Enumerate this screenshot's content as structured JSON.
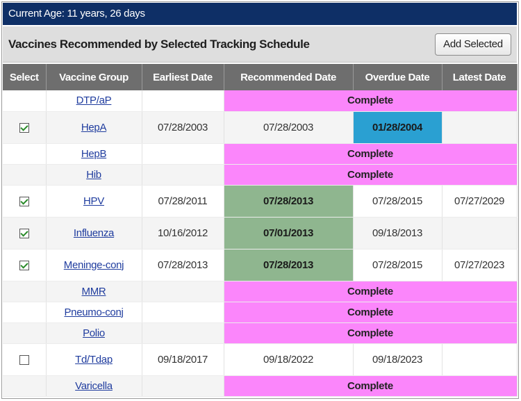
{
  "age_bar": {
    "text": "Current Age: 11 years, 26 days"
  },
  "schedule": {
    "title": "Vaccines Recommended by Selected Tracking Schedule",
    "add_button": "Add Selected"
  },
  "columns": [
    "Select",
    "Vaccine Group",
    "Earliest Date",
    "Recommended Date",
    "Overdue Date",
    "Latest Date"
  ],
  "status_label": "Complete",
  "colors": {
    "header_bar": "#0e2f66",
    "complete": "#fb86fb",
    "recommended_highlight": "#8fb68f",
    "overdue_highlight": "#2aa0d2",
    "column_header": "#6e6e6e"
  },
  "rows": [
    {
      "vaccine": "DTP/aP",
      "complete": true
    },
    {
      "vaccine": "HepA",
      "checkbox": "checked",
      "earliest": "07/28/2003",
      "recommended": "07/28/2003",
      "overdue": "01/28/2004",
      "latest": "",
      "highlight_overdue": true
    },
    {
      "vaccine": "HepB",
      "complete": true
    },
    {
      "vaccine": "Hib",
      "complete": true
    },
    {
      "vaccine": "HPV",
      "checkbox": "checked",
      "earliest": "07/28/2011",
      "recommended": "07/28/2013",
      "overdue": "07/28/2015",
      "latest": "07/27/2029",
      "highlight_recommended": true
    },
    {
      "vaccine": "Influenza",
      "checkbox": "checked",
      "earliest": "10/16/2012",
      "recommended": "07/01/2013",
      "overdue": "09/18/2013",
      "latest": "",
      "highlight_recommended": true
    },
    {
      "vaccine": "Meninge-conj",
      "checkbox": "checked",
      "earliest": "07/28/2013",
      "recommended": "07/28/2013",
      "overdue": "07/28/2015",
      "latest": "07/27/2023",
      "highlight_recommended": true
    },
    {
      "vaccine": "MMR",
      "complete": true
    },
    {
      "vaccine": "Pneumo-conj",
      "complete": true
    },
    {
      "vaccine": "Polio",
      "complete": true
    },
    {
      "vaccine": "Td/Tdap",
      "checkbox": "unchecked",
      "earliest": "09/18/2017",
      "recommended": "09/18/2022",
      "overdue": "09/18/2023",
      "latest": ""
    },
    {
      "vaccine": "Varicella",
      "complete": true
    }
  ]
}
